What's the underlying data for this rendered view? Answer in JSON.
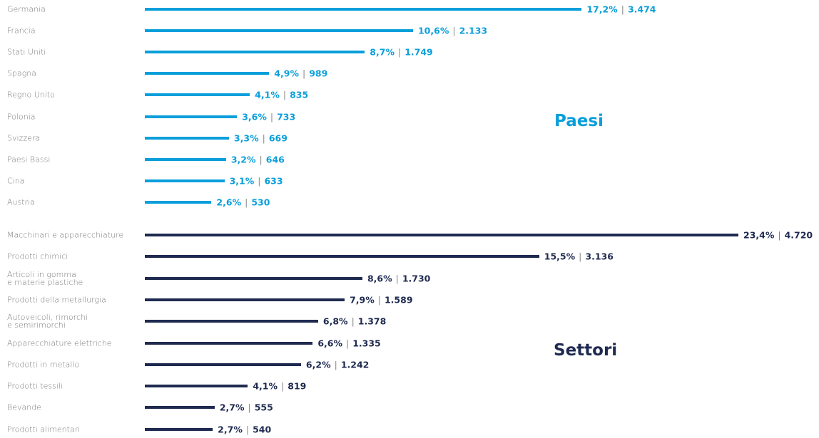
{
  "separator": "|",
  "chart_data": [
    {
      "type": "bar",
      "title": "Paesi",
      "color": "#0a9fdb",
      "categories": [
        "Germania",
        "Francia",
        "Stati Uniti",
        "Spagna",
        "Regno Unito",
        "Polonia",
        "Svizzera",
        "Paesi Bassi",
        "Cina",
        "Austria"
      ],
      "values": [
        3474,
        2133,
        1749,
        989,
        835,
        733,
        669,
        646,
        633,
        530
      ],
      "value_labels": [
        "3.474",
        "2.133",
        "1.749",
        "989",
        "835",
        "733",
        "669",
        "646",
        "633",
        "530"
      ],
      "shares": [
        17.2,
        10.6,
        8.7,
        4.9,
        4.1,
        3.6,
        3.3,
        3.2,
        3.1,
        2.6
      ],
      "share_labels": [
        "17,2%",
        "10,6%",
        "8,7%",
        "4,9%",
        "4,1%",
        "3,6%",
        "3,3%",
        "3,2%",
        "3,1%",
        "2,6%"
      ]
    },
    {
      "type": "bar",
      "title": "Settori",
      "color": "#1f2a50",
      "categories": [
        "Macchinari e apparecchiature",
        "Prodotti chimici",
        "Articoli in gomma\ne materie plastiche",
        "Prodotti della metallurgia",
        "Autoveicoli, rimorchi\ne semirimorchi",
        "Apparecchiature elettriche",
        "Prodotti in metallo",
        "Prodotti tessili",
        "Bevande",
        "Prodotti alimentari"
      ],
      "values": [
        4720,
        3136,
        1730,
        1589,
        1378,
        1335,
        1242,
        819,
        555,
        540
      ],
      "value_labels": [
        "4.720",
        "3.136",
        "1.730",
        "1.589",
        "1.378",
        "1.335",
        "1.242",
        "819",
        "555",
        "540"
      ],
      "shares": [
        23.4,
        15.5,
        8.6,
        7.9,
        6.8,
        6.6,
        6.2,
        4.1,
        2.7,
        2.7
      ],
      "share_labels": [
        "23,4%",
        "15,5%",
        "8,6%",
        "7,9%",
        "6,8%",
        "6,6%",
        "6,2%",
        "4,1%",
        "2,7%",
        "2,7%"
      ]
    }
  ]
}
